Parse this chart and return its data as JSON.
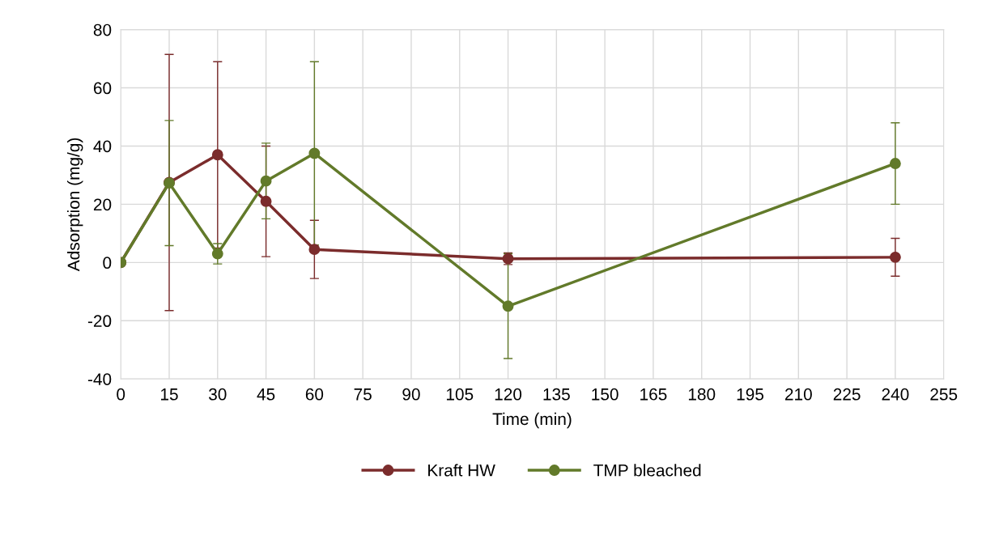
{
  "chart_data": {
    "type": "line",
    "xlabel": "Time (min)",
    "ylabel": "Adsorption (mg/g)",
    "x": [
      0,
      15,
      30,
      45,
      60,
      120,
      240
    ],
    "series": [
      {
        "name": "Kraft HW",
        "color": "#7b2c2c",
        "values": [
          0,
          27.5,
          37,
          21,
          4.5,
          1.3,
          1.8
        ],
        "errors": [
          null,
          44,
          32,
          19,
          10,
          2,
          6.5
        ]
      },
      {
        "name": "TMP bleached",
        "color": "#627a2a",
        "values": [
          0,
          27.3,
          3,
          28,
          37.5,
          -15,
          34
        ],
        "errors": [
          null,
          21.5,
          3.5,
          13,
          31.5,
          18,
          14
        ]
      }
    ],
    "xlim": [
      0,
      255
    ],
    "xticks": [
      0,
      15,
      30,
      45,
      60,
      75,
      90,
      105,
      120,
      135,
      150,
      165,
      180,
      195,
      210,
      225,
      240,
      255
    ],
    "ylim": [
      -40,
      80
    ],
    "yticks": [
      -40,
      -20,
      0,
      20,
      40,
      60,
      80
    ],
    "grid": true,
    "legend": "bottom",
    "marker": "circle",
    "line_style": "solid"
  }
}
